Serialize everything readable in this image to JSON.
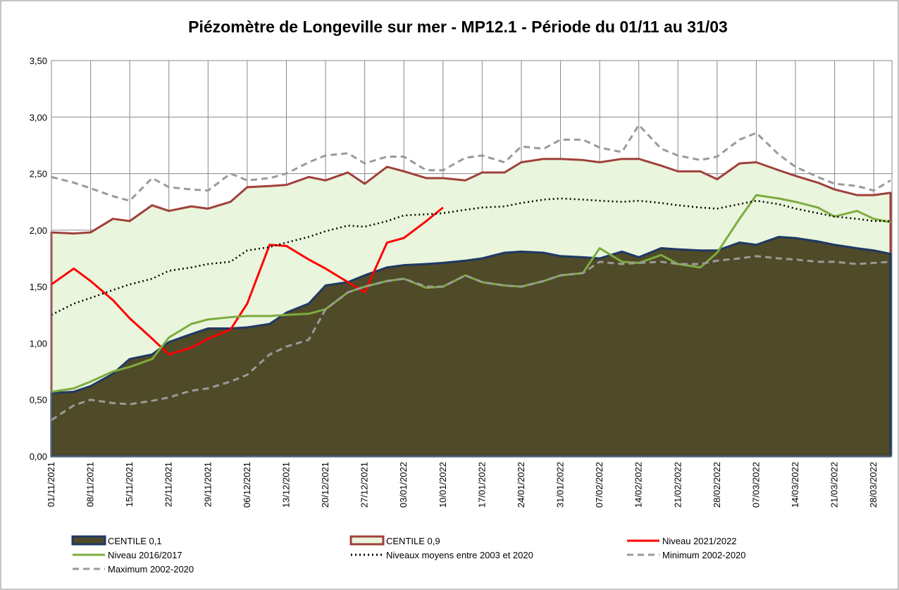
{
  "chart_data": {
    "type": "line",
    "title": "Piézomètre de Longeville sur mer - MP12.1 - Période du 01/11 au 31/03",
    "x": [
      "01/11/2021",
      "05/11/2021",
      "08/11/2021",
      "12/11/2021",
      "15/11/2021",
      "19/11/2021",
      "22/11/2021",
      "26/11/2021",
      "29/11/2021",
      "03/12/2021",
      "06/12/2021",
      "10/12/2021",
      "13/12/2021",
      "17/12/2021",
      "20/12/2021",
      "24/12/2021",
      "27/12/2021",
      "31/12/2021",
      "03/01/2022",
      "07/01/2022",
      "10/01/2022",
      "14/01/2022",
      "17/01/2022",
      "21/01/2022",
      "24/01/2022",
      "28/01/2022",
      "31/01/2022",
      "04/02/2022",
      "07/02/2022",
      "11/02/2022",
      "14/02/2022",
      "18/02/2022",
      "21/02/2022",
      "25/02/2022",
      "28/02/2022",
      "04/03/2022",
      "07/03/2022",
      "11/03/2022",
      "14/03/2022",
      "18/03/2022",
      "21/03/2022",
      "25/03/2022",
      "28/03/2022",
      "31/03/2022"
    ],
    "xlim": [
      "01/11/2021",
      "31/03/2022"
    ],
    "xticks": [
      "01/11/2021",
      "08/11/2021",
      "15/11/2021",
      "22/11/2021",
      "29/11/2021",
      "06/12/2021",
      "13/12/2021",
      "20/12/2021",
      "27/12/2021",
      "03/01/2022",
      "10/01/2022",
      "17/01/2022",
      "24/01/2022",
      "31/01/2022",
      "07/02/2022",
      "14/02/2022",
      "21/02/2022",
      "28/02/2022",
      "07/03/2022",
      "14/03/2022",
      "21/03/2022",
      "28/03/2022"
    ],
    "ylim": [
      0,
      3.5
    ],
    "yticks": [
      {
        "value": 0,
        "label": "0,00"
      },
      {
        "value": 0.5,
        "label": "0,50"
      },
      {
        "value": 1,
        "label": "1,00"
      },
      {
        "value": 1.5,
        "label": "1,50"
      },
      {
        "value": 2,
        "label": "2,00"
      },
      {
        "value": 2.5,
        "label": "2,50"
      },
      {
        "value": 3,
        "label": "3,00"
      },
      {
        "value": 3.5,
        "label": "3,50"
      }
    ],
    "grid": true,
    "legend": "bottom",
    "series": [
      {
        "name": "CENTILE 0,9",
        "style": "area",
        "color": "#e9f5dc",
        "border": "#a0403a",
        "values": [
          1.98,
          1.97,
          1.98,
          2.1,
          2.08,
          2.22,
          2.17,
          2.21,
          2.19,
          2.25,
          2.38,
          2.39,
          2.4,
          2.47,
          2.44,
          2.51,
          2.41,
          2.56,
          2.52,
          2.46,
          2.46,
          2.44,
          2.51,
          2.51,
          2.6,
          2.63,
          2.63,
          2.62,
          2.6,
          2.63,
          2.63,
          2.57,
          2.52,
          2.52,
          2.45,
          2.59,
          2.6,
          2.53,
          2.48,
          2.42,
          2.36,
          2.31,
          2.31,
          2.33
        ]
      },
      {
        "name": "CENTILE 0,1",
        "style": "area",
        "color": "#4f4a28",
        "border": "#1f3864",
        "values": [
          0.56,
          0.57,
          0.62,
          0.73,
          0.86,
          0.9,
          1.01,
          1.08,
          1.13,
          1.13,
          1.14,
          1.17,
          1.27,
          1.35,
          1.51,
          1.54,
          1.6,
          1.67,
          1.69,
          1.7,
          1.71,
          1.73,
          1.75,
          1.8,
          1.81,
          1.8,
          1.77,
          1.76,
          1.75,
          1.81,
          1.76,
          1.84,
          1.83,
          1.82,
          1.82,
          1.89,
          1.87,
          1.94,
          1.93,
          1.9,
          1.87,
          1.84,
          1.82,
          1.79
        ]
      },
      {
        "name": "Niveau 2021/2022",
        "style": "solid",
        "color": "#ff0000",
        "values": [
          1.52,
          1.66,
          1.55,
          1.38,
          1.22,
          1.04,
          0.9,
          0.96,
          1.04,
          1.12,
          1.35,
          1.87,
          1.86,
          1.74,
          1.66,
          1.54,
          1.45,
          1.89,
          1.93,
          2.08,
          2.2,
          null,
          null,
          null,
          null,
          null,
          null,
          null,
          null,
          null,
          null,
          null,
          null,
          null,
          null,
          null,
          null,
          null,
          null,
          null,
          null,
          null,
          null,
          null
        ]
      },
      {
        "name": "Niveau 2016/2017",
        "style": "solid",
        "color": "#7dac3e",
        "values": [
          0.57,
          0.6,
          0.66,
          0.75,
          0.79,
          0.86,
          1.05,
          1.17,
          1.21,
          1.23,
          1.24,
          1.24,
          1.25,
          1.26,
          1.3,
          1.45,
          1.5,
          1.55,
          1.57,
          1.49,
          1.5,
          1.6,
          1.54,
          1.51,
          1.5,
          1.55,
          1.6,
          1.62,
          1.84,
          1.72,
          1.71,
          1.78,
          1.7,
          1.67,
          1.8,
          2.1,
          2.31,
          2.28,
          2.25,
          2.2,
          2.12,
          2.17,
          2.1,
          2.07
        ]
      },
      {
        "name": "Niveaux moyens entre 2003 et 2020",
        "style": "dotted",
        "color": "#000000",
        "values": [
          1.25,
          1.35,
          1.4,
          1.47,
          1.52,
          1.57,
          1.64,
          1.67,
          1.7,
          1.72,
          1.82,
          1.85,
          1.89,
          1.94,
          1.99,
          2.04,
          2.03,
          2.08,
          2.13,
          2.14,
          2.15,
          2.18,
          2.2,
          2.21,
          2.24,
          2.27,
          2.28,
          2.27,
          2.26,
          2.25,
          2.26,
          2.24,
          2.22,
          2.2,
          2.19,
          2.23,
          2.26,
          2.23,
          2.19,
          2.15,
          2.12,
          2.1,
          2.08,
          2.08
        ]
      },
      {
        "name": "Minimum 2002-2020",
        "style": "dashed",
        "color": "#9a9a9a",
        "values": [
          0.32,
          0.45,
          0.5,
          0.47,
          0.46,
          0.49,
          0.52,
          0.58,
          0.6,
          0.66,
          0.72,
          0.9,
          0.97,
          1.03,
          1.3,
          1.45,
          1.5,
          1.55,
          1.57,
          1.5,
          1.5,
          1.6,
          1.54,
          1.51,
          1.5,
          1.55,
          1.6,
          1.62,
          1.72,
          1.7,
          1.71,
          1.72,
          1.7,
          1.7,
          1.73,
          1.75,
          1.77,
          1.75,
          1.74,
          1.72,
          1.72,
          1.7,
          1.71,
          1.72
        ]
      },
      {
        "name": "Maximum 2002-2020",
        "style": "dashed",
        "color": "#9a9a9a",
        "values": [
          2.47,
          2.42,
          2.37,
          2.3,
          2.26,
          2.46,
          2.38,
          2.36,
          2.35,
          2.5,
          2.44,
          2.46,
          2.5,
          2.6,
          2.66,
          2.68,
          2.59,
          2.65,
          2.65,
          2.53,
          2.53,
          2.64,
          2.66,
          2.6,
          2.74,
          2.72,
          2.8,
          2.8,
          2.73,
          2.69,
          2.93,
          2.72,
          2.66,
          2.62,
          2.65,
          2.8,
          2.86,
          2.67,
          2.56,
          2.47,
          2.41,
          2.39,
          2.35,
          2.44
        ]
      }
    ]
  }
}
